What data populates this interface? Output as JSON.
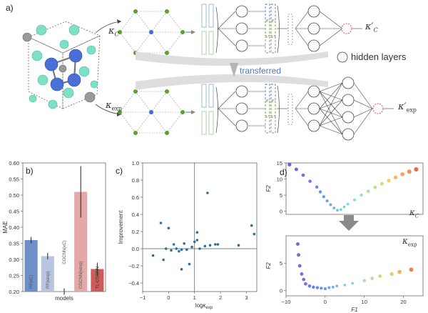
{
  "panel_a": {
    "label": "a)",
    "kappa_c": "κ",
    "kappa_c_sub": "C",
    "kappa_exp": "κ",
    "kappa_exp_sub": "exp",
    "kappa_c_prime": "κ′",
    "kappa_c_prime_sub": "C",
    "kappa_exp_prime": "κ′",
    "kappa_exp_prime_sub": "exp",
    "transferred": "transferred",
    "hidden_layers": "hidden layers",
    "colors": {
      "atom_teal": "#7fe0c8",
      "atom_blue": "#4a6fd8",
      "atom_gray": "#9a9a9a",
      "node_green": "#5aa02c",
      "node_blue": "#3a6fe0",
      "output_red": "#e05050",
      "arrow_gray": "#c8c8c8",
      "transferred_blue": "#4a78c0"
    }
  },
  "panel_b": {
    "label": "b)",
    "chart_data": {
      "type": "bar",
      "title": "",
      "xlabel": "models",
      "ylabel": "MAE",
      "ylim": [
        0.2,
        0.6
      ],
      "yticks": [
        "0.20",
        "0.25",
        "0.30",
        "0.35",
        "0.40",
        "0.45",
        "0.50",
        "0.55",
        "0.60"
      ],
      "categories": [
        "RF(κC)",
        "RF(κexp)",
        "CGCNN(κC)",
        "CGCNN(κexp)",
        "TL-CGCNN"
      ],
      "values": [
        0.36,
        0.31,
        0.2,
        0.51,
        0.27
      ],
      "errors": [
        0.01,
        0.01,
        0.01,
        0.08,
        0.02
      ],
      "colors": [
        "#6f8fc8",
        "#b9c4e0",
        "#ffffff",
        "#e5a8a8",
        "#cf5b5b"
      ]
    }
  },
  "panel_c": {
    "label": "c)",
    "chart_data": {
      "type": "scatter",
      "title": "",
      "xlabel": "logκ",
      "xlabel_sub": "exp",
      "ylabel": "Improvement",
      "xlim": [
        -1,
        3.4
      ],
      "ylim": [
        -0.5,
        1.0
      ],
      "xticks": [
        "−1",
        "0",
        "1",
        "2",
        "3"
      ],
      "yticks": [
        "−0.4",
        "−0.2",
        "0.0",
        "0.2",
        "0.4",
        "0.6",
        "0.8",
        "1.0"
      ],
      "x": [
        -0.6,
        -0.3,
        -0.2,
        -0.1,
        0.0,
        0.1,
        0.2,
        0.3,
        0.4,
        0.5,
        0.5,
        0.6,
        0.7,
        0.8,
        0.9,
        1.0,
        1.1,
        1.1,
        1.2,
        1.4,
        1.5,
        1.6,
        1.8,
        1.9,
        2.7,
        3.2,
        3.3
      ],
      "y": [
        -0.08,
        0.3,
        -0.13,
        0.0,
        0.24,
        -0.02,
        0.05,
        0.0,
        -0.03,
        -0.01,
        -0.24,
        0.06,
        -0.01,
        -0.18,
        0.02,
        0.08,
        0.19,
        0.1,
        0.0,
        0.03,
        0.65,
        0.04,
        0.05,
        0.05,
        0.04,
        0.27,
        0.17
      ],
      "color": "#2e6e9e"
    }
  },
  "panel_d": {
    "label": "d)",
    "top_tag": "κ",
    "top_tag_sub": "C",
    "bottom_tag": "κ",
    "bottom_tag_sub": "exp",
    "chart_data": [
      {
        "type": "scatter",
        "xlabel": "",
        "ylabel": "F2",
        "xlim": [
          -15,
          25
        ],
        "ylim": [
          -1,
          15
        ],
        "yticks": [
          "0",
          "5",
          "10",
          "15"
        ],
        "x": [
          -14,
          -12,
          -10,
          -8,
          -6,
          -5,
          -4,
          -3,
          -2,
          -1,
          0,
          1,
          2,
          3,
          5,
          7,
          9,
          11,
          13,
          15,
          17,
          19,
          21,
          23
        ],
        "y": [
          14.5,
          13,
          11.2,
          9.3,
          7.5,
          6,
          4.5,
          3.2,
          2,
          1,
          0.3,
          0.5,
          1.3,
          2.2,
          3.5,
          5,
          6.2,
          7.4,
          8.5,
          9.5,
          10.5,
          11.5,
          12.3,
          13
        ]
      },
      {
        "type": "scatter",
        "xlabel": "F1",
        "ylabel": "F2",
        "xlim": [
          -10,
          25
        ],
        "ylim": [
          -1,
          10
        ],
        "xticks": [
          "−10",
          "0",
          "10",
          "20"
        ],
        "yticks": [
          "0",
          "5"
        ],
        "x": [
          -7,
          -6.8,
          -6.5,
          -6,
          -5.5,
          -5,
          -4,
          -3,
          -2,
          -1,
          0,
          1,
          2,
          3,
          5,
          7,
          10,
          12,
          14,
          17,
          19,
          22
        ],
        "y": [
          8.5,
          6.5,
          4.5,
          3,
          2,
          1.2,
          0.8,
          0.6,
          0.5,
          0.4,
          0.3,
          0.5,
          0.6,
          0.8,
          1,
          1.3,
          1.8,
          2.2,
          2.6,
          3,
          3.4,
          3.8
        ]
      }
    ]
  }
}
